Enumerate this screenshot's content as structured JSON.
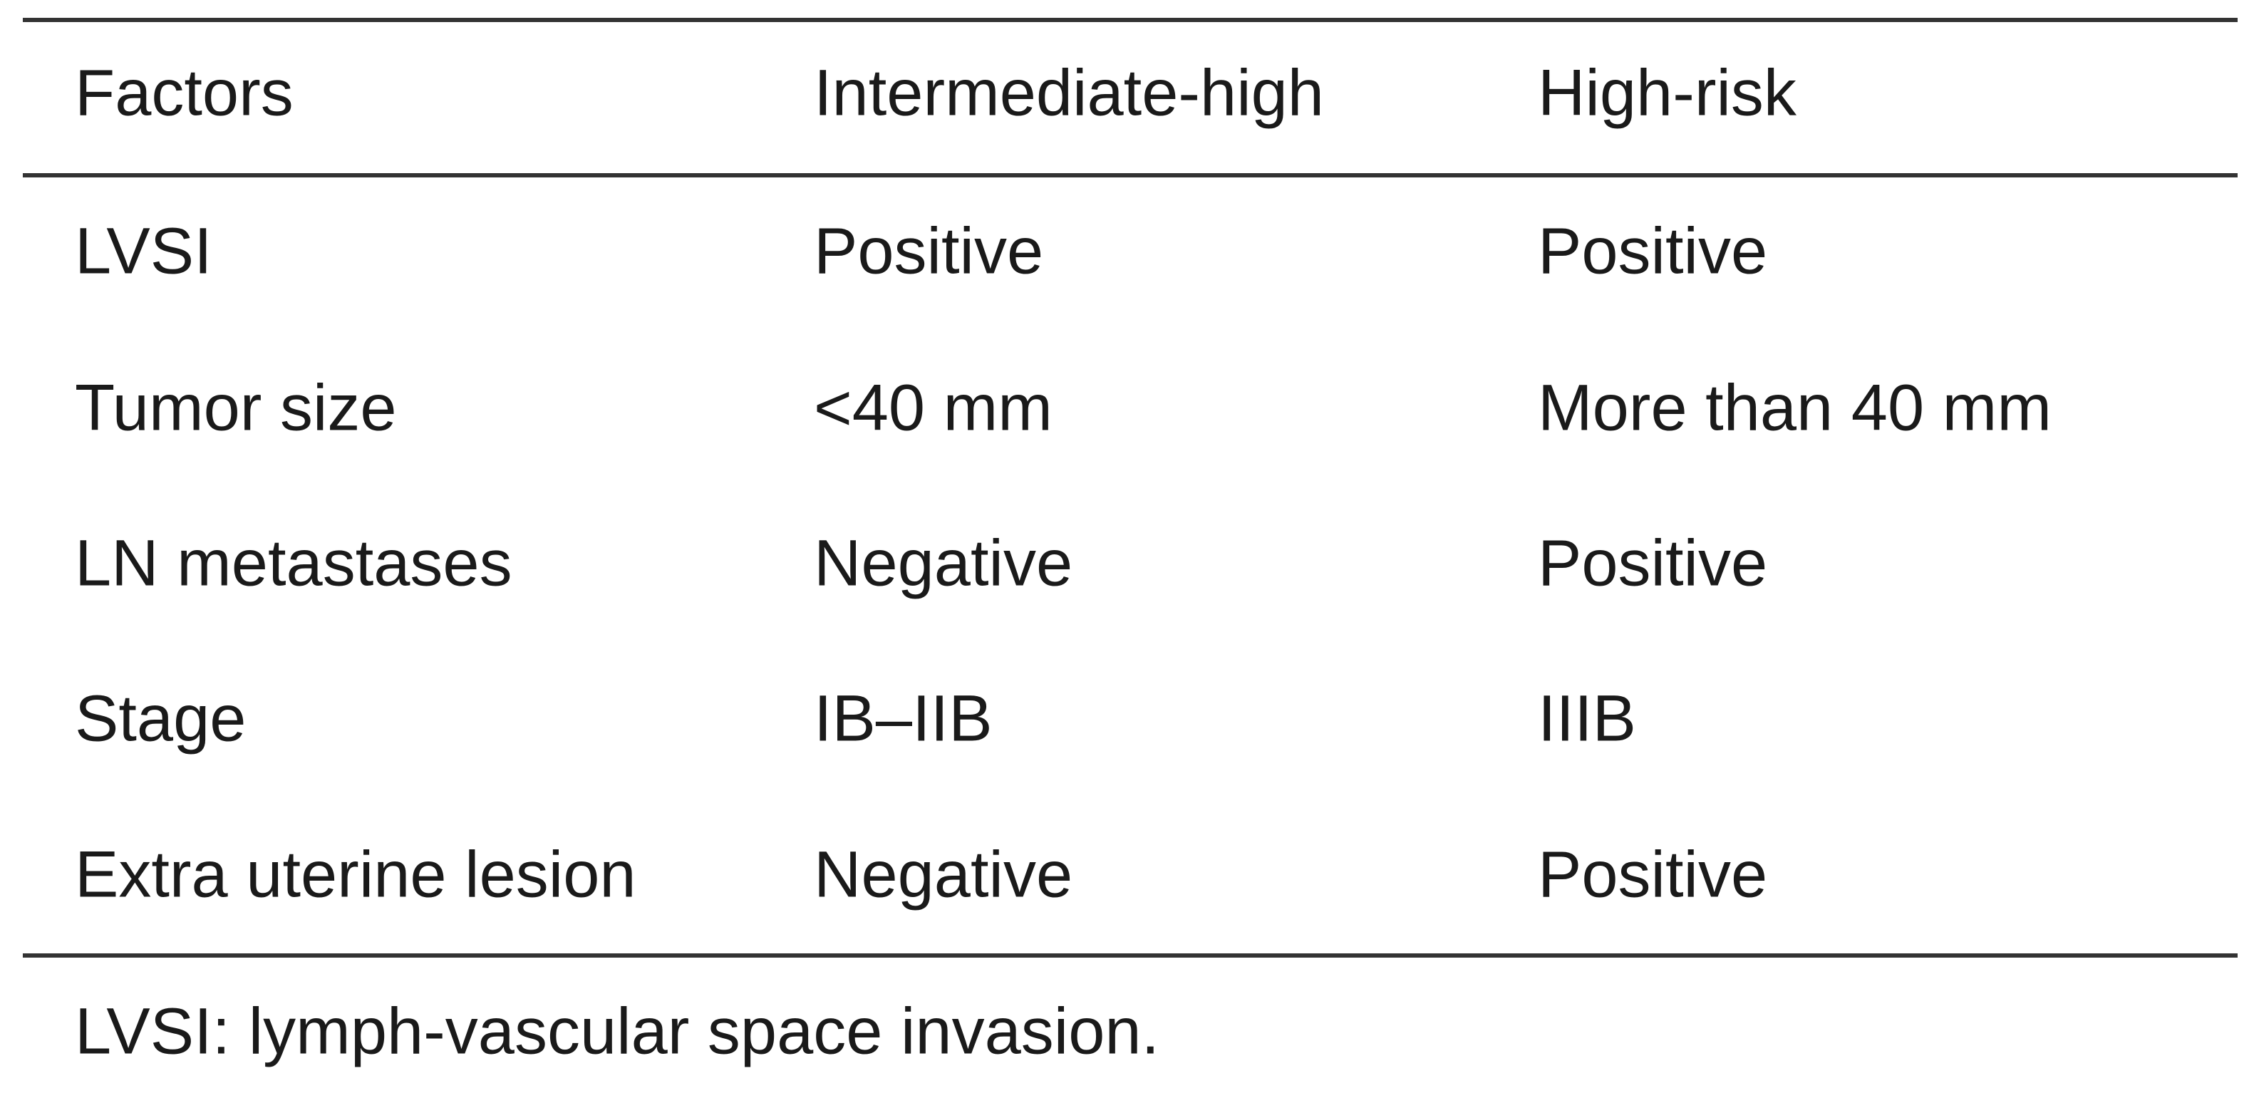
{
  "table": {
    "header": [
      "Factors",
      "Intermediate-high",
      "High-risk"
    ],
    "rows": [
      [
        "LVSI",
        "Positive",
        "Positive"
      ],
      [
        "Tumor size",
        "<40 mm",
        "More than 40 mm"
      ],
      [
        "LN metastases",
        "Negative",
        "Positive"
      ],
      [
        "Stage",
        "IB–IIB",
        "IIIB"
      ],
      [
        "Extra uterine lesion",
        "Negative",
        "Positive"
      ]
    ],
    "footnote": "LVSI: lymph-vascular space invasion."
  }
}
